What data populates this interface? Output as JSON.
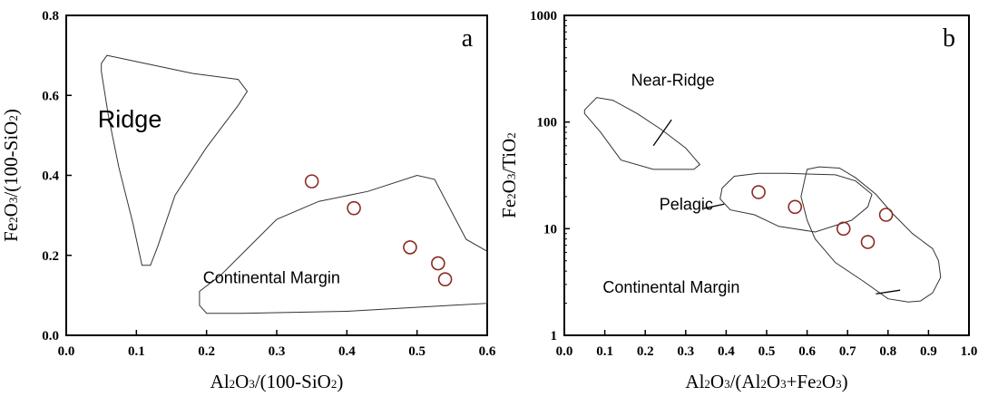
{
  "chart_data": [
    {
      "type": "scatter",
      "panel_label": "a",
      "xlabel": {
        "parts": [
          [
            "Al",
            ""
          ],
          [
            "2",
            "sub"
          ],
          [
            "O",
            ""
          ],
          [
            "3",
            "sub"
          ],
          [
            "/(100-SiO",
            ""
          ],
          [
            "2",
            "sub"
          ],
          [
            ")",
            ""
          ]
        ]
      },
      "ylabel": {
        "parts": [
          [
            "Fe",
            ""
          ],
          [
            "2",
            "sub"
          ],
          [
            "O",
            ""
          ],
          [
            "3",
            "sub"
          ],
          [
            "/(100-SiO",
            ""
          ],
          [
            "2",
            "sub"
          ],
          [
            ")",
            ""
          ]
        ]
      },
      "xlim": [
        0.0,
        0.6
      ],
      "ylim": [
        0.0,
        0.8
      ],
      "xscale": "linear",
      "yscale": "linear",
      "xticks": [
        "0.0",
        "0.1",
        "0.2",
        "0.3",
        "0.4",
        "0.5",
        "0.6"
      ],
      "yticks": [
        "0.0",
        "0.2",
        "0.4",
        "0.6",
        "0.8"
      ],
      "points": [
        {
          "x": 0.35,
          "y": 0.385
        },
        {
          "x": 0.41,
          "y": 0.318
        },
        {
          "x": 0.49,
          "y": 0.22
        },
        {
          "x": 0.53,
          "y": 0.18
        },
        {
          "x": 0.54,
          "y": 0.14
        }
      ],
      "fields": [
        {
          "label": "Ridge",
          "label_pos": [
            0.045,
            0.52
          ],
          "label_size": "large",
          "polygon": [
            [
              0.05,
              0.68
            ],
            [
              0.058,
              0.7
            ],
            [
              0.085,
              0.69
            ],
            [
              0.18,
              0.655
            ],
            [
              0.245,
              0.64
            ],
            [
              0.258,
              0.61
            ],
            [
              0.245,
              0.575
            ],
            [
              0.2,
              0.47
            ],
            [
              0.155,
              0.35
            ],
            [
              0.13,
              0.22
            ],
            [
              0.12,
              0.175
            ],
            [
              0.108,
              0.175
            ],
            [
              0.095,
              0.28
            ],
            [
              0.075,
              0.42
            ],
            [
              0.06,
              0.55
            ],
            [
              0.05,
              0.66
            ]
          ]
        },
        {
          "label": "Continental Margin",
          "label_pos": [
            0.195,
            0.13
          ],
          "label_size": "medium",
          "polygon": [
            [
              0.19,
              0.11
            ],
            [
              0.22,
              0.15
            ],
            [
              0.26,
              0.22
            ],
            [
              0.3,
              0.29
            ],
            [
              0.36,
              0.335
            ],
            [
              0.43,
              0.36
            ],
            [
              0.5,
              0.4
            ],
            [
              0.525,
              0.39
            ],
            [
              0.57,
              0.24
            ],
            [
              0.6,
              0.21
            ],
            [
              0.6,
              0.08
            ],
            [
              0.4,
              0.06
            ],
            [
              0.25,
              0.055
            ],
            [
              0.2,
              0.055
            ],
            [
              0.19,
              0.075
            ]
          ]
        }
      ],
      "annotations": []
    },
    {
      "type": "scatter",
      "panel_label": "b",
      "xlabel": {
        "parts": [
          [
            "Al",
            ""
          ],
          [
            "2",
            "sub"
          ],
          [
            "O",
            ""
          ],
          [
            "3",
            "sub"
          ],
          [
            "/(Al",
            ""
          ],
          [
            "2",
            "sub"
          ],
          [
            "O",
            ""
          ],
          [
            "3",
            "sub"
          ],
          [
            "+Fe",
            ""
          ],
          [
            "2",
            "sub"
          ],
          [
            "O",
            ""
          ],
          [
            "3",
            "sub"
          ],
          [
            ")",
            ""
          ]
        ]
      },
      "ylabel": {
        "parts": [
          [
            "Fe",
            ""
          ],
          [
            "2",
            "sub"
          ],
          [
            "O",
            ""
          ],
          [
            "3",
            "sub"
          ],
          [
            "/TiO",
            ""
          ],
          [
            "2",
            "sub"
          ]
        ]
      },
      "xlim": [
        0.0,
        1.0
      ],
      "ylim": [
        1,
        1000
      ],
      "xscale": "linear",
      "yscale": "log",
      "xticks": [
        "0.0",
        "0.1",
        "0.2",
        "0.3",
        "0.4",
        "0.5",
        "0.6",
        "0.7",
        "0.8",
        "0.9",
        "1.0"
      ],
      "yticks": [
        "1",
        "10",
        "100",
        "1000"
      ],
      "points": [
        {
          "x": 0.48,
          "y": 22
        },
        {
          "x": 0.57,
          "y": 16
        },
        {
          "x": 0.69,
          "y": 10
        },
        {
          "x": 0.75,
          "y": 7.5
        },
        {
          "x": 0.795,
          "y": 13.5
        }
      ],
      "fields": [
        {
          "label": "Near-Ridge",
          "label_pos": [
            0.165,
            220
          ],
          "label_size": "medium",
          "polygon": [
            [
              0.05,
              130
            ],
            [
              0.08,
              170
            ],
            [
              0.12,
              160
            ],
            [
              0.18,
              120
            ],
            [
              0.24,
              85
            ],
            [
              0.3,
              57
            ],
            [
              0.335,
              40
            ],
            [
              0.32,
              36
            ],
            [
              0.22,
              36
            ],
            [
              0.14,
              44
            ],
            [
              0.09,
              80
            ],
            [
              0.05,
              120
            ]
          ]
        },
        {
          "label": "Pelagic",
          "label_pos": [
            0.235,
            15
          ],
          "label_size": "medium",
          "polygon": [
            [
              0.39,
              24
            ],
            [
              0.42,
              31
            ],
            [
              0.48,
              33
            ],
            [
              0.55,
              33
            ],
            [
              0.67,
              32
            ],
            [
              0.72,
              28
            ],
            [
              0.76,
              21
            ],
            [
              0.75,
              16
            ],
            [
              0.71,
              12
            ],
            [
              0.62,
              9.3
            ],
            [
              0.53,
              10.5
            ],
            [
              0.47,
              13.5
            ],
            [
              0.41,
              15
            ],
            [
              0.385,
              19
            ]
          ]
        },
        {
          "label": "",
          "label_pos": [
            0,
            0
          ],
          "label_size": "medium",
          "polygon": [
            [
              0.6,
              36
            ],
            [
              0.63,
              38
            ],
            [
              0.68,
              37
            ],
            [
              0.72,
              30
            ],
            [
              0.77,
              21
            ],
            [
              0.81,
              14
            ],
            [
              0.86,
              9
            ],
            [
              0.91,
              6.5
            ],
            [
              0.925,
              5
            ],
            [
              0.93,
              3.5
            ],
            [
              0.91,
              2.5
            ],
            [
              0.88,
              2.1
            ],
            [
              0.85,
              2.05
            ],
            [
              0.8,
              2.2
            ],
            [
              0.74,
              3.2
            ],
            [
              0.67,
              4.8
            ],
            [
              0.62,
              8
            ],
            [
              0.6,
              12
            ],
            [
              0.585,
              20
            ],
            [
              0.595,
              30
            ]
          ]
        }
      ],
      "annotations": [
        {
          "from": [
            0.22,
            60
          ],
          "to": [
            0.265,
            105
          ]
        },
        {
          "from": [
            0.345,
            15.5
          ],
          "to": [
            0.395,
            17
          ]
        },
        {
          "from": [
            0.77,
            2.45
          ],
          "to": [
            0.83,
            2.65
          ]
        }
      ],
      "extra_labels": [
        {
          "text": "Continental Margin",
          "pos": [
            0.095,
            2.5
          ],
          "size": "medium"
        }
      ]
    }
  ]
}
